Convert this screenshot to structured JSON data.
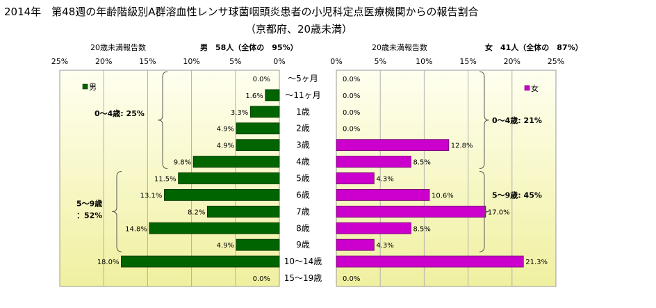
{
  "title": "2014年　第48週の年齢階級別A群溶血性レンサ球菌咽頭炎患者の小児科定点医療機関からの報告割合",
  "subtitle": "（京都府、20歳未満）",
  "colors": {
    "male": "#006400",
    "female": "#cc00cc",
    "plot_bg_top": "#fffff0",
    "plot_bg_bottom": "#f0f0a0"
  },
  "chart_data": {
    "type": "bar",
    "orientation": "horizontal-butterfly",
    "categories": [
      "〜5ヶ月",
      "〜11ヶ月",
      "1歳",
      "2歳",
      "3歳",
      "4歳",
      "5歳",
      "6歳",
      "7歳",
      "8歳",
      "9歳",
      "10〜14歳",
      "15〜19歳"
    ],
    "xlim": [
      0,
      25
    ],
    "ticks": [
      "0%",
      "5%",
      "10%",
      "15%",
      "20%",
      "25%"
    ],
    "grid": true,
    "series": [
      {
        "name": "男",
        "side": "left",
        "header_label": "20歳未満報告数",
        "header_total": "男　58人（全体の　95%）",
        "values": [
          0.0,
          1.6,
          3.3,
          4.9,
          4.9,
          9.8,
          11.5,
          13.1,
          8.2,
          14.8,
          4.9,
          18.0,
          0.0
        ],
        "labels": [
          "0.0%",
          "1.6%",
          "3.3%",
          "4.9%",
          "4.9%",
          "9.8%",
          "11.5%",
          "13.1%",
          "8.2%",
          "14.8%",
          "4.9%",
          "18.0%",
          "0.0%"
        ],
        "groups": [
          {
            "label": "0〜4歳: 25%",
            "from": 0,
            "to": 5
          },
          {
            "label": "5〜9歳\n：52%",
            "from": 6,
            "to": 10
          }
        ]
      },
      {
        "name": "女",
        "side": "right",
        "header_label": "20歳未満報告数",
        "header_total": "女　41人（全体の　87%）",
        "values": [
          0.0,
          0.0,
          0.0,
          0.0,
          12.8,
          8.5,
          4.3,
          10.6,
          17.0,
          8.5,
          4.3,
          21.3,
          0.0
        ],
        "labels": [
          "0.0%",
          "0.0%",
          "0.0%",
          "0.0%",
          "12.8%",
          "8.5%",
          "4.3%",
          "10.6%",
          "17.0%",
          "8.5%",
          "4.3%",
          "21.3%",
          "0.0%"
        ],
        "groups": [
          {
            "label": "0〜4歳: 21%",
            "from": 0,
            "to": 5
          },
          {
            "label": "5〜9歳: 45%",
            "from": 6,
            "to": 10
          }
        ]
      }
    ]
  }
}
